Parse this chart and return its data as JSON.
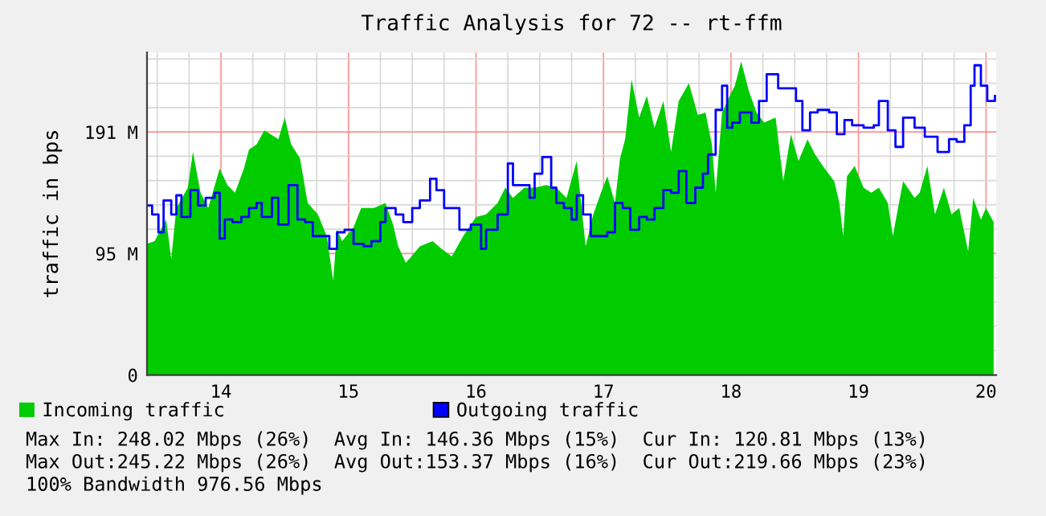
{
  "chart_data": {
    "type": "area",
    "title": "Traffic Analysis for 72 -- rt-ffm",
    "ylabel": "traffic in bps",
    "xlim": [
      13.42,
      20.08
    ],
    "ylim": [
      0,
      253
    ],
    "xticks": [
      {
        "value": 13.5,
        "label": null
      },
      {
        "value": 13.75,
        "label": null
      },
      14,
      {
        "value": 14.25,
        "label": null
      },
      {
        "value": 14.5,
        "label": null
      },
      {
        "value": 14.75,
        "label": null
      },
      15,
      {
        "value": 15.25,
        "label": null
      },
      {
        "value": 15.5,
        "label": null
      },
      {
        "value": 15.75,
        "label": null
      },
      16,
      {
        "value": 16.25,
        "label": null
      },
      {
        "value": 16.5,
        "label": null
      },
      {
        "value": 16.75,
        "label": null
      },
      17,
      {
        "value": 17.25,
        "label": null
      },
      {
        "value": 17.5,
        "label": null
      },
      {
        "value": 17.75,
        "label": null
      },
      18,
      {
        "value": 18.25,
        "label": null
      },
      {
        "value": 18.5,
        "label": null
      },
      {
        "value": 18.75,
        "label": null
      },
      19,
      {
        "value": 19.25,
        "label": null
      },
      {
        "value": 19.5,
        "label": null
      },
      {
        "value": 19.75,
        "label": null
      },
      20
    ],
    "yticks": [
      0,
      {
        "value": 19.07,
        "label": null
      },
      {
        "value": 38.15,
        "label": null
      },
      {
        "value": 57.22,
        "label": null
      },
      {
        "value": 76.29,
        "label": null
      },
      {
        "value": 95.37,
        "label": "95 M"
      },
      {
        "value": 114.44,
        "label": null
      },
      {
        "value": 133.51,
        "label": null
      },
      {
        "value": 152.59,
        "label": null
      },
      {
        "value": 171.66,
        "label": null
      },
      {
        "value": 190.73,
        "label": "191 M"
      },
      {
        "value": 209.81,
        "label": null
      },
      {
        "value": 228.88,
        "label": null
      },
      {
        "value": 247.96,
        "label": null
      }
    ],
    "grid": true,
    "legend": "bottom",
    "series": [
      {
        "name": "Incoming traffic",
        "color": "#00cc00",
        "x": [
          13.42,
          13.48,
          13.57,
          13.61,
          13.65,
          13.74,
          13.78,
          13.84,
          13.9,
          13.99,
          14.05,
          14.11,
          14.18,
          14.22,
          14.28,
          14.34,
          14.39,
          14.45,
          14.5,
          14.55,
          14.62,
          14.68,
          14.76,
          14.83,
          14.88,
          14.91,
          14.95,
          15.04,
          15.1,
          15.2,
          15.29,
          15.35,
          15.39,
          15.45,
          15.56,
          15.66,
          15.73,
          15.81,
          15.9,
          16.0,
          16.08,
          16.17,
          16.23,
          16.29,
          16.38,
          16.46,
          16.55,
          16.63,
          16.71,
          16.79,
          16.86,
          16.92,
          16.98,
          17.03,
          17.09,
          17.13,
          17.17,
          17.22,
          17.28,
          17.34,
          17.4,
          17.47,
          17.53,
          17.59,
          17.67,
          17.74,
          17.8,
          17.85,
          17.88,
          17.93,
          17.99,
          18.03,
          18.08,
          18.14,
          18.2,
          18.26,
          18.35,
          18.41,
          18.47,
          18.53,
          18.6,
          18.66,
          18.72,
          18.81,
          18.85,
          18.88,
          18.91,
          18.97,
          19.04,
          19.1,
          19.16,
          19.23,
          19.27,
          19.31,
          19.35,
          19.44,
          19.48,
          19.54,
          19.6,
          19.67,
          19.73,
          19.79,
          19.86,
          19.9,
          19.96,
          20.0,
          20.06
        ],
        "values": [
          103,
          105,
          122,
          91,
          131,
          147,
          175,
          143,
          131,
          162,
          149,
          143,
          162,
          177,
          181,
          192,
          189,
          185,
          202,
          181,
          170,
          135,
          126,
          109,
          74,
          114,
          105,
          116,
          131,
          131,
          135,
          118,
          101,
          88,
          101,
          105,
          99,
          93,
          109,
          124,
          126,
          135,
          147,
          139,
          147,
          147,
          149,
          147,
          139,
          168,
          101,
          126,
          143,
          156,
          135,
          170,
          185,
          232,
          202,
          219,
          194,
          215,
          175,
          215,
          229,
          204,
          206,
          181,
          143,
          206,
          219,
          227,
          246,
          223,
          206,
          198,
          202,
          152,
          189,
          168,
          185,
          173,
          164,
          152,
          135,
          109,
          156,
          164,
          147,
          143,
          147,
          135,
          109,
          131,
          152,
          139,
          143,
          164,
          126,
          147,
          126,
          131,
          97,
          139,
          122,
          131,
          120
        ]
      },
      {
        "name": "Outgoing traffic",
        "type": "step",
        "color": "#0000ff",
        "x": [
          13.42,
          13.46,
          13.51,
          13.55,
          13.61,
          13.65,
          13.69,
          13.76,
          13.82,
          13.88,
          13.95,
          13.99,
          14.03,
          14.09,
          14.16,
          14.22,
          14.28,
          14.32,
          14.4,
          14.45,
          14.53,
          14.6,
          14.66,
          14.72,
          14.78,
          14.85,
          14.91,
          14.97,
          15.04,
          15.12,
          15.18,
          15.25,
          15.29,
          15.37,
          15.43,
          15.5,
          15.56,
          15.64,
          15.69,
          15.75,
          15.81,
          15.87,
          15.96,
          16.04,
          16.08,
          16.17,
          16.25,
          16.29,
          16.36,
          16.42,
          16.46,
          16.52,
          16.59,
          16.63,
          16.69,
          16.75,
          16.79,
          16.84,
          16.9,
          16.96,
          17.03,
          17.09,
          17.15,
          17.21,
          17.28,
          17.34,
          17.4,
          17.47,
          17.53,
          17.59,
          17.65,
          17.72,
          17.78,
          17.82,
          17.88,
          17.93,
          17.97,
          18.01,
          18.07,
          18.16,
          18.22,
          18.28,
          18.37,
          18.45,
          18.51,
          18.56,
          18.62,
          18.68,
          18.77,
          18.83,
          18.89,
          18.95,
          19.04,
          19.12,
          19.16,
          19.23,
          19.29,
          19.35,
          19.44,
          19.52,
          19.62,
          19.71,
          19.77,
          19.83,
          19.88,
          19.91,
          19.96,
          20.01,
          20.07
        ],
        "values": [
          133,
          126,
          112,
          137,
          126,
          141,
          124,
          145,
          133,
          139,
          143,
          107,
          122,
          120,
          124,
          131,
          135,
          124,
          139,
          118,
          149,
          122,
          120,
          109,
          109,
          99,
          112,
          114,
          103,
          101,
          105,
          120,
          131,
          126,
          120,
          131,
          137,
          154,
          145,
          131,
          131,
          114,
          118,
          99,
          114,
          126,
          166,
          149,
          149,
          139,
          158,
          171,
          147,
          135,
          131,
          122,
          141,
          126,
          109,
          109,
          112,
          135,
          131,
          114,
          124,
          122,
          131,
          145,
          143,
          160,
          135,
          147,
          158,
          173,
          208,
          227,
          194,
          198,
          206,
          198,
          215,
          236,
          225,
          225,
          215,
          192,
          206,
          208,
          206,
          189,
          200,
          196,
          194,
          196,
          215,
          192,
          179,
          202,
          194,
          187,
          175,
          185,
          183,
          196,
          227,
          243,
          227,
          215,
          219
        ]
      }
    ],
    "annotations": [
      "Max In: 248.02 Mbps (26%)  Avg In: 146.36 Mbps (15%)  Cur In: 120.81 Mbps (13%)",
      "Max Out:245.22 Mbps (26%)  Avg Out:153.37 Mbps (16%)  Cur Out:219.66 Mbps (23%)",
      "100% Bandwidth 976.56 Mbps"
    ]
  }
}
